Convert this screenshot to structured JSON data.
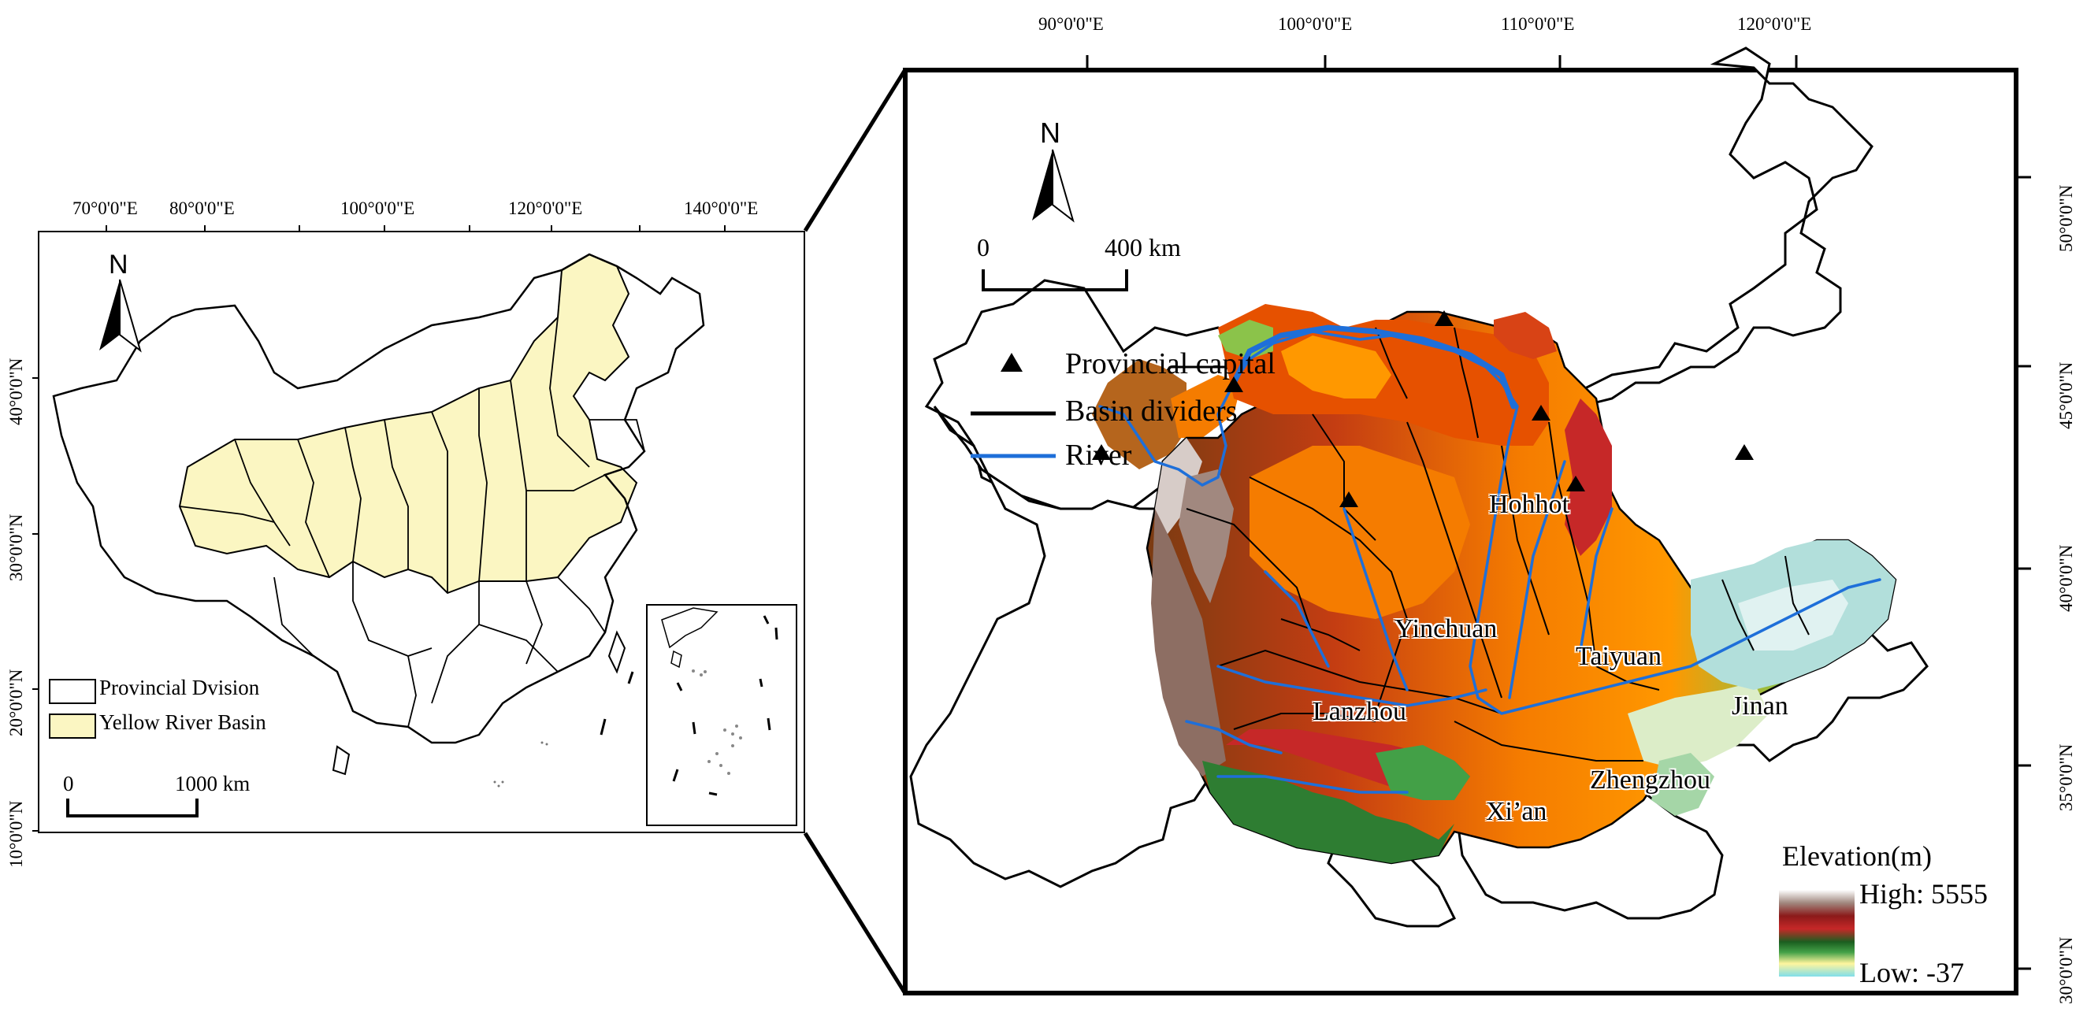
{
  "left_map": {
    "lon_ticks": [
      "70°0'0\"E",
      "80°0'0\"E",
      "100°0'0\"E",
      "120°0'0\"E",
      "140°0'0\"E"
    ],
    "lat_ticks": [
      "40°0'0\"N",
      "30°0'0\"N",
      "20°0'0\"N",
      "10°0'0\"N"
    ],
    "north_label": "N",
    "legend": {
      "provincial": "Provincial Dvision",
      "basin": "Yellow River Basin"
    },
    "scale": {
      "zero": "0",
      "distance": "1000 km"
    },
    "colors": {
      "basin_fill": "#fbf6c2",
      "boundary": "#000000"
    }
  },
  "right_map": {
    "lon_ticks": [
      "90°0'0\"E",
      "100°0'0\"E",
      "110°0'0\"E",
      "120°0'0\"E"
    ],
    "lat_ticks": [
      "50°0'0\"N",
      "45°0'0\"N",
      "40°0'0\"N",
      "35°0'0\"N",
      "30°0'0\"N"
    ],
    "north_label": "N",
    "scale": {
      "zero": "0",
      "distance": "400 km"
    },
    "legend": {
      "capital": "Provincial capital",
      "dividers": "Basin dividers",
      "river": "River"
    },
    "cities": {
      "hohhot": "Hohhot",
      "yinchuan": "Yinchuan",
      "taiyuan": "Taiyuan",
      "lanzhou": "Lanzhou",
      "jinan": "Jinan",
      "zhengzhou": "Zhengzhou",
      "xian": "Xi’an"
    },
    "elevation": {
      "title": "Elevation(m)",
      "high": "High: 5555",
      "low": "Low: -37"
    },
    "colors": {
      "river": "#1e6fd9",
      "divider": "#000000"
    }
  }
}
